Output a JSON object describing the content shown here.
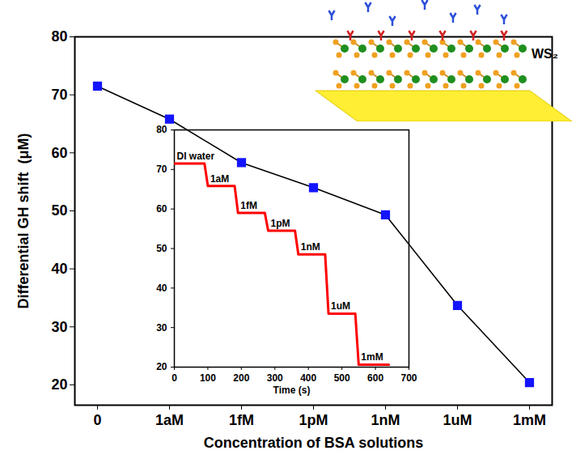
{
  "chart_data": [
    {
      "type": "line",
      "x_label": "Concentration of BSA solutions",
      "y_label": "Differential GH shift  (μM)",
      "categories": [
        "0",
        "1aM",
        "1fM",
        "1pM",
        "1nM",
        "1uM",
        "1mM"
      ],
      "values": [
        71.5,
        65.8,
        58.3,
        54.0,
        49.3,
        33.7,
        20.4
      ],
      "color": "#1414ff",
      "marker": "square",
      "ylim": [
        16.5,
        80
      ],
      "yticks": [
        20,
        30,
        40,
        50,
        60,
        70,
        80
      ],
      "annotations": [
        {
          "text": "WS₂"
        }
      ]
    },
    {
      "type": "line",
      "x_label": "Time (s)",
      "x": [
        0,
        90,
        100,
        180,
        190,
        270,
        280,
        360,
        370,
        450,
        460,
        540,
        550,
        640
      ],
      "values": [
        71.5,
        71.5,
        65.8,
        65.8,
        59.0,
        59.0,
        54.5,
        54.5,
        48.5,
        48.5,
        33.5,
        33.5,
        20.6,
        20.6
      ],
      "color": "#ff0000",
      "xlim": [
        0,
        700
      ],
      "xticks": [
        0,
        100,
        200,
        300,
        400,
        500,
        600,
        700
      ],
      "ylim": [
        20,
        80
      ],
      "yticks": [
        20,
        30,
        40,
        50,
        60,
        70,
        80
      ],
      "annotations": [
        {
          "text": "DI water",
          "x": 0,
          "y": 71.5
        },
        {
          "text": "1aM",
          "x": 100,
          "y": 65.8
        },
        {
          "text": "1fM",
          "x": 190,
          "y": 59.0
        },
        {
          "text": "1pM",
          "x": 280,
          "y": 54.5
        },
        {
          "text": "1nM",
          "x": 370,
          "y": 48.5
        },
        {
          "text": "1uM",
          "x": 460,
          "y": 33.5
        },
        {
          "text": "1mM",
          "x": 550,
          "y": 20.6
        }
      ]
    }
  ]
}
